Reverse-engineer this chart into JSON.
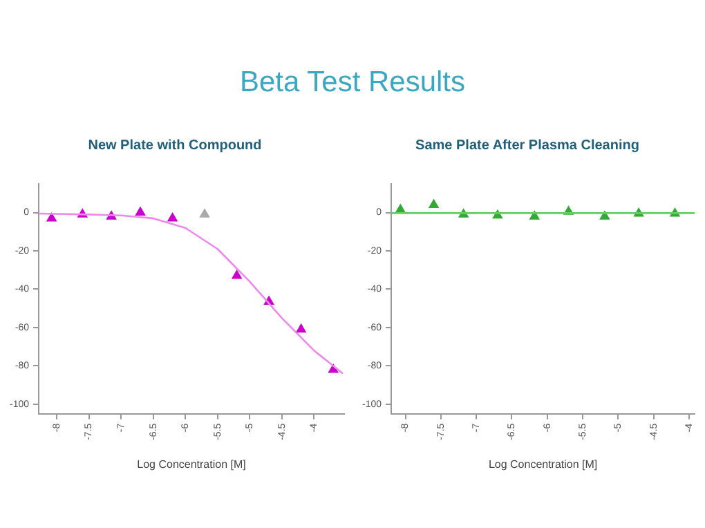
{
  "chart_data": [
    {
      "type": "other",
      "title": "Beta Test Results"
    },
    {
      "type": "scatter",
      "title": "New Plate with Compound",
      "xlabel": "Log Concentration [M]",
      "grid": false,
      "legend": false,
      "xlim": [
        -8.28,
        -3.53
      ],
      "xticks": [
        -8,
        -7.5,
        -7,
        -6.5,
        -6,
        -5.5,
        -5,
        -4.5,
        -4
      ],
      "ylim": [
        -105,
        15
      ],
      "yticks": [
        0,
        -20,
        -40,
        -60,
        -80,
        -100
      ],
      "series": [
        {
          "type": "line",
          "marker": "none",
          "color": "#ee88ee",
          "x": [
            -8.28,
            -7.5,
            -7,
            -6.5,
            -6,
            -5.5,
            -5,
            -4.5,
            -4,
            -3.55
          ],
          "values": [
            -0.5,
            -1,
            -1.5,
            -3,
            -8,
            -19,
            -36,
            -55,
            -72,
            -84
          ]
        },
        {
          "type": "scatter",
          "marker": "triangle",
          "color": "#cc00cc",
          "x": [
            -8.08,
            -7.6,
            -7.15,
            -6.7,
            -6.2,
            -5.2,
            -4.7,
            -4.2,
            -3.7
          ],
          "values": [
            -3,
            -1,
            -2,
            0,
            -3,
            -33,
            -46.5,
            -61,
            -82
          ]
        },
        {
          "type": "scatter",
          "marker": "triangle",
          "color": "#aaaaaa",
          "x": [
            -5.7
          ],
          "values": [
            -1
          ]
        }
      ]
    },
    {
      "type": "scatter",
      "title": "Same Plate After Plasma Cleaning",
      "xlabel": "Log Concentration [M]",
      "grid": false,
      "legend": false,
      "xlim": [
        -8.2,
        -3.92
      ],
      "xticks": [
        -8,
        -7.5,
        -7,
        -6.5,
        -6,
        -5.5,
        -5,
        -4.5,
        -4
      ],
      "ylim": [
        -105,
        15
      ],
      "yticks": [
        0,
        -20,
        -40,
        -60,
        -80,
        -100
      ],
      "series": [
        {
          "type": "line",
          "marker": "none",
          "color": "#66cc66",
          "x": [
            -8.2,
            -3.92
          ],
          "values": [
            -0.3,
            -0.3
          ]
        },
        {
          "type": "scatter",
          "marker": "triangle",
          "color": "#33aa33",
          "x": [
            -8.07,
            -7.6,
            -7.18,
            -6.7,
            -6.18,
            -5.7,
            -5.19,
            -4.71,
            -4.2
          ],
          "values": [
            1.5,
            4,
            -1,
            -1.5,
            -2,
            0.5,
            -2,
            -0.5,
            -0.5
          ]
        }
      ]
    }
  ]
}
